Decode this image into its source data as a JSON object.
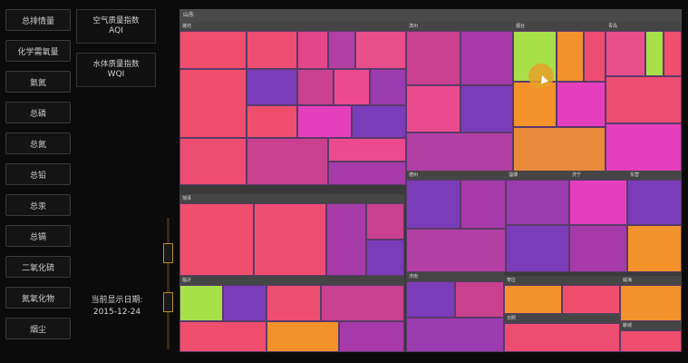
{
  "nav": {
    "buttons": [
      "总排情量",
      "化学需氧量",
      "氨氮",
      "总磷",
      "总氮",
      "总铅",
      "总汞",
      "总镉",
      "二氧化硫",
      "氮氧化物",
      "烟尘"
    ]
  },
  "indices": [
    {
      "label": "空气质量指数",
      "code": "AQI"
    },
    {
      "label": "水体质量指数",
      "code": "WQI"
    }
  ],
  "date_panel": {
    "label": "当前显示日期:",
    "value": "2015-12-24"
  },
  "treemap": {
    "root": "山东",
    "regions": [
      {
        "name": "潍坊"
      },
      {
        "name": "滨州"
      },
      {
        "name": "烟台"
      },
      {
        "name": "青岛"
      },
      {
        "name": "菏泽"
      },
      {
        "name": "德州"
      },
      {
        "name": "淄博"
      },
      {
        "name": "济宁"
      },
      {
        "name": "东营"
      },
      {
        "name": "临沂"
      },
      {
        "name": "济南"
      },
      {
        "name": "枣庄"
      },
      {
        "name": "威海"
      },
      {
        "name": "日照"
      },
      {
        "name": "聊城"
      }
    ]
  },
  "colors": {
    "pink": "#ef4e6d",
    "magenta": "#e63fbe",
    "purple": "#7a3cb8",
    "orange": "#f3912a",
    "lime": "#a8e04a",
    "violet": "#a63aa8"
  }
}
